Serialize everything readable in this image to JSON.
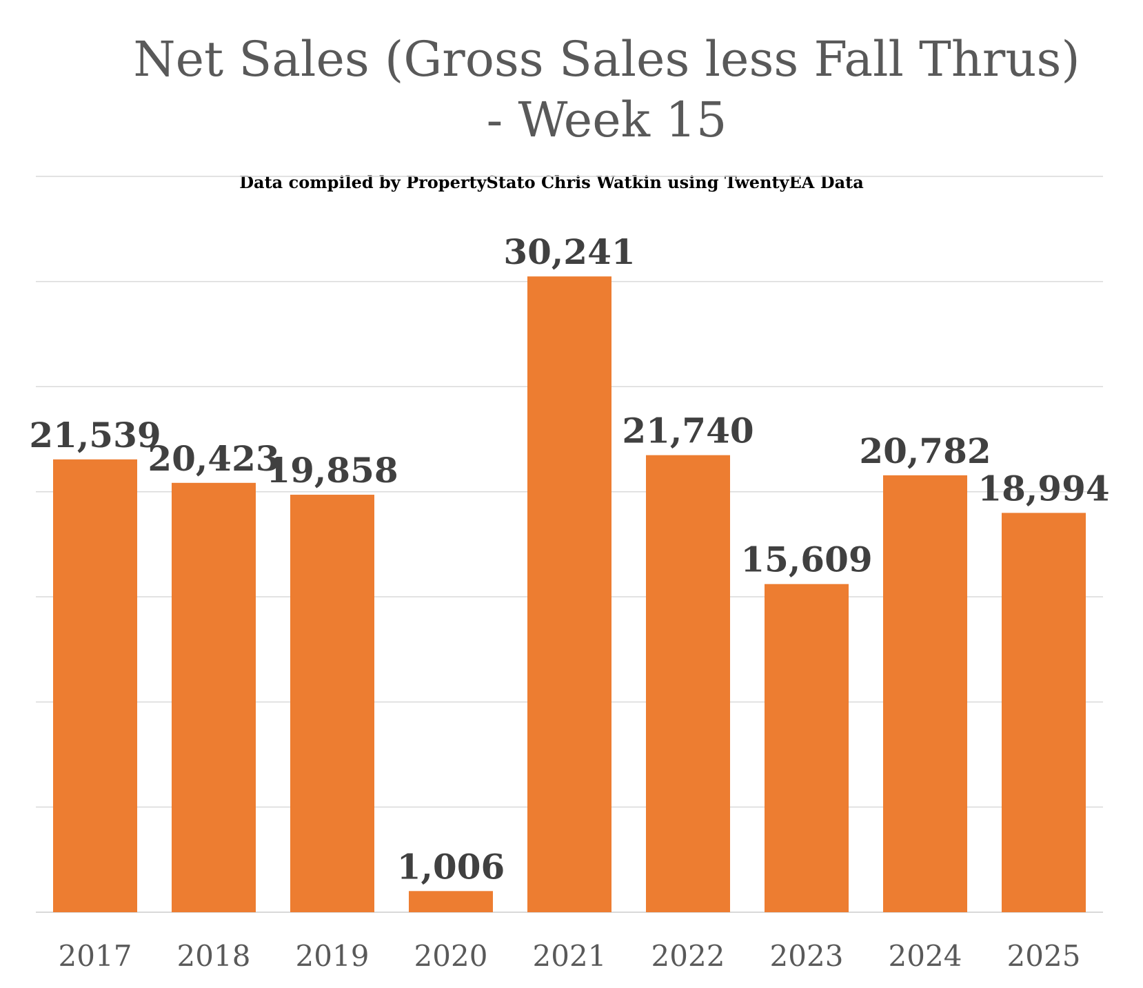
{
  "chart_data": {
    "type": "bar",
    "title_lines": [
      "Net Sales (Gross Sales less Fall Thrus)",
      "- Week 15"
    ],
    "subtitle": "Data compiled by PropertyStato Chris Watkin using TwentyEA Data",
    "categories": [
      "2017",
      "2018",
      "2019",
      "2020",
      "2021",
      "2022",
      "2023",
      "2024",
      "2025"
    ],
    "values": [
      21539,
      20423,
      19858,
      1006,
      30241,
      21740,
      15609,
      20782,
      18994
    ],
    "value_labels": [
      "21,539",
      "20,423",
      "19,858",
      "1,006",
      "30,241",
      "21,740",
      "15,609",
      "20,782",
      "18,994"
    ],
    "ylim": [
      0,
      35000
    ],
    "y_grid_step": 5000,
    "grid": true,
    "y_tick_labels_shown": false,
    "legend": "none",
    "bar_color": "#ED7D31"
  }
}
